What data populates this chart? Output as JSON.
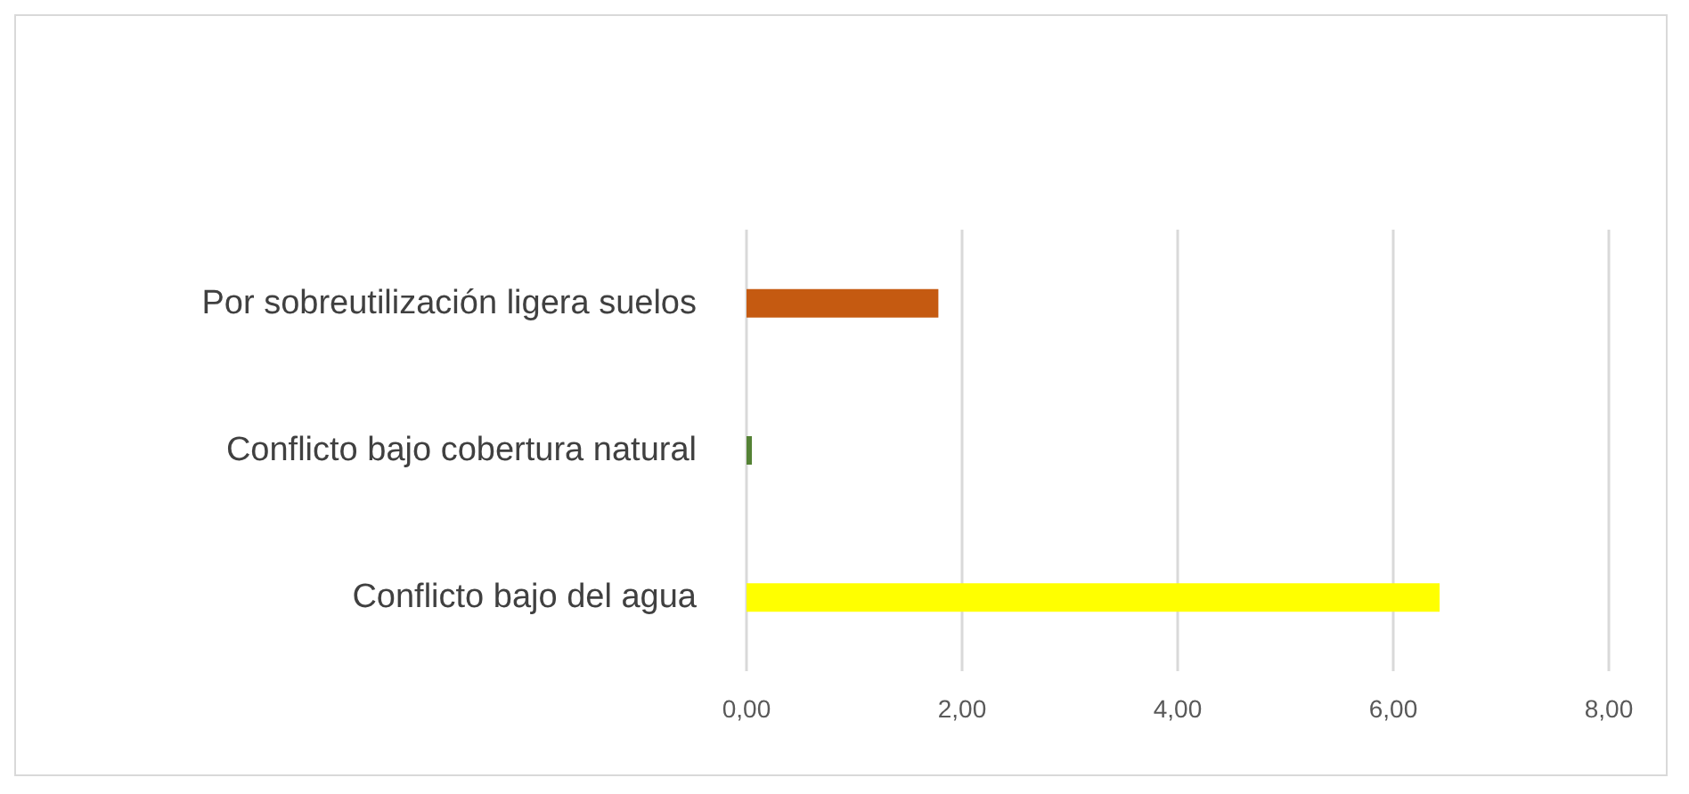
{
  "chart_data": {
    "type": "bar",
    "orientation": "horizontal",
    "categories": [
      "Por sobreutilización ligera suelos",
      "Conflicto bajo cobertura natural",
      "Conflicto bajo del agua"
    ],
    "values": [
      1.78,
      0.05,
      6.43
    ],
    "colors": [
      "#c55a11",
      "#548235",
      "#ffff00"
    ],
    "xlim": [
      0,
      8
    ],
    "xticks": [
      {
        "value": 0,
        "label": "0,00"
      },
      {
        "value": 2,
        "label": "2,00"
      },
      {
        "value": 4,
        "label": "4,00"
      },
      {
        "value": 6,
        "label": "6,00"
      },
      {
        "value": 8,
        "label": "8,00"
      }
    ],
    "grid": "x"
  }
}
